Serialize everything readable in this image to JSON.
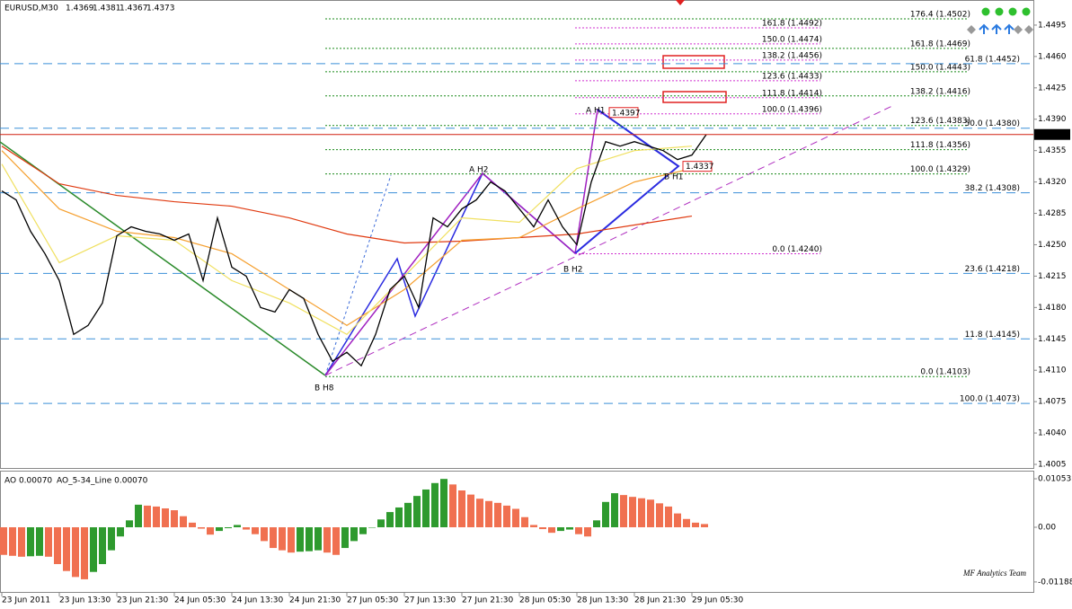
{
  "chart_data": [
    {
      "type": "line",
      "symbol": "EURUSD,M30",
      "ohlc": [
        1.4369,
        1.4381,
        1.4367,
        1.4373
      ],
      "color": "#000000",
      "values": [
        1.431,
        1.43,
        1.4265,
        1.424,
        1.421,
        1.415,
        1.416,
        1.4185,
        1.426,
        1.427,
        1.4265,
        1.4262,
        1.4255,
        1.4262,
        1.421,
        1.428,
        1.4225,
        1.4215,
        1.418,
        1.4175,
        1.42,
        1.419,
        1.415,
        1.412,
        1.413,
        1.4115,
        1.415,
        1.42,
        1.4215,
        1.418,
        1.428,
        1.427,
        1.429,
        1.43,
        1.432,
        1.431,
        1.429,
        1.427,
        1.43,
        1.427,
        1.425,
        1.432,
        1.4365,
        1.436,
        1.4365,
        1.436,
        1.4355,
        1.4345,
        1.435,
        1.4373
      ],
      "ylim": [
        1.4,
        1.4523
      ],
      "yticks": [
        1.4005,
        {
          "value": 1.404,
          "label": "1.4040"
        },
        1.4075,
        {
          "value": 1.411,
          "label": "1.4110"
        },
        1.4145,
        {
          "value": 1.418,
          "label": "1.4180"
        },
        1.4215,
        {
          "value": 1.425,
          "label": "1.4250"
        },
        1.4285,
        {
          "value": 1.432,
          "label": "1.4320"
        },
        1.4355,
        {
          "value": 1.439,
          "label": "1.4390"
        },
        1.4425,
        {
          "value": 1.446,
          "label": "1.4460"
        },
        1.4495
      ],
      "last_price": 1.4373,
      "last_price_color": "#d02010",
      "moving_averages": [
        {
          "color": "#e03a10",
          "values": [
            1.436,
            1.4318,
            1.4305,
            1.4298,
            1.4293,
            1.428,
            1.4262,
            1.4252,
            1.4254,
            1.4258,
            1.4262,
            1.4272,
            1.4282
          ]
        },
        {
          "color": "#f5a030",
          "values": [
            1.4355,
            1.429,
            1.4265,
            1.4258,
            1.424,
            1.42,
            1.416,
            1.42,
            1.4255,
            1.4258,
            1.429,
            1.432,
            1.4335
          ]
        },
        {
          "color": "#f0e060",
          "values": [
            1.434,
            1.423,
            1.426,
            1.4255,
            1.421,
            1.4185,
            1.415,
            1.4215,
            1.428,
            1.4275,
            1.4335,
            1.4355,
            1.436
          ]
        }
      ],
      "fib_groups": [
        {
          "color": "#1a8a1a",
          "levels": [
            {
              "value": 1.4502,
              "label": "176.4 (1.4502)"
            },
            {
              "value": 1.4469,
              "label": "161.8 (1.4469)"
            },
            {
              "value": 1.4443,
              "label": "150.0 (1.4443)"
            },
            {
              "value": 1.4416,
              "label": "138.2 (1.4416)"
            },
            {
              "value": 1.4383,
              "label": "123.6 (1.4383)"
            },
            {
              "value": 1.4356,
              "label": "111.8 (1.4356)"
            },
            {
              "value": 1.4329,
              "label": "100.0 (1.4329)"
            },
            {
              "value": 1.4103,
              "label": "0.0 (1.4103)"
            }
          ]
        },
        {
          "color": "#d030d0",
          "levels": [
            {
              "value": 1.4492,
              "label": "161.8 (1.4492)"
            },
            {
              "value": 1.4474,
              "label": "150.0 (1.4474)"
            },
            {
              "value": 1.4456,
              "label": "138.2 (1.4456)"
            },
            {
              "value": 1.4433,
              "label": "123.6 (1.4433)"
            },
            {
              "value": 1.4414,
              "label": "111.8 (1.4414)"
            },
            {
              "value": 1.4396,
              "label": "100.0 (1.4396)"
            },
            {
              "value": 1.424,
              "label": "0.0 (1.4240)"
            }
          ]
        },
        {
          "color": "#3a8fd8",
          "levels": [
            {
              "value": 1.4452,
              "label": "61.8 (1.4452)"
            },
            {
              "value": 1.438,
              "label": "50.0 (1.4380)"
            },
            {
              "value": 1.4308,
              "label": "38.2 (1.4308)"
            },
            {
              "value": 1.4218,
              "label": "23.6 (1.4218)"
            },
            {
              "value": 1.4145,
              "label": "11.8 (1.4145)"
            },
            {
              "value": 1.4073,
              "label": "100.0 (1.4073)"
            }
          ]
        }
      ],
      "patterns": [
        {
          "label": "A H1",
          "color": "#2a2ae0"
        },
        {
          "label": "B H1",
          "color": "#2a2ae0"
        },
        {
          "label": "A H2",
          "color": "#a020c0"
        },
        {
          "label": "B H2",
          "color": "#a020c0"
        },
        {
          "label": "B H8",
          "color": "#1a8a1a"
        }
      ],
      "price_tags": [
        1.4397,
        1.4337
      ],
      "watermark": "MF Analytics Team",
      "x_labels": [
        "23 Jun 2011",
        "23 Jun 13:30",
        "23 Jun 21:30",
        "24 Jun 05:30",
        "24 Jun 13:30",
        "24 Jun 21:30",
        "27 Jun 05:30",
        "27 Jun 13:30",
        "27 Jun 21:30",
        "28 Jun 05:30",
        "28 Jun 13:30",
        "28 Jun 21:30",
        "29 Jun 05:30"
      ]
    },
    {
      "type": "bar",
      "title": "AO 0.00070",
      "subtitle": "AO_5-34_Line 0.00070",
      "up_color": "#2e9a2e",
      "down_color": "#f07050",
      "values": [
        -0.006,
        -0.0062,
        -0.0064,
        -0.0063,
        -0.0062,
        -0.0064,
        -0.008,
        -0.0095,
        -0.0108,
        -0.0113,
        -0.0097,
        -0.008,
        -0.005,
        -0.002,
        0.0015,
        0.0049,
        0.0047,
        0.0045,
        0.0041,
        0.0037,
        0.0024,
        0.001,
        -0.0003,
        -0.0016,
        -0.0008,
        -0.0002,
        0.0005,
        -0.0005,
        -0.0015,
        -0.003,
        -0.0045,
        -0.005,
        -0.0055,
        -0.0053,
        -0.0052,
        -0.005,
        -0.0055,
        -0.006,
        -0.0045,
        -0.003,
        -0.0015,
        0.0,
        0.0017,
        0.0033,
        0.0043,
        0.0053,
        0.0068,
        0.0082,
        0.0096,
        0.0105,
        0.0093,
        0.008,
        0.0071,
        0.0062,
        0.0057,
        0.0053,
        0.0047,
        0.004,
        0.0022,
        0.0005,
        -0.0004,
        -0.0012,
        -0.0008,
        -0.0005,
        -0.0015,
        -0.002,
        0.0015,
        0.0055,
        0.0074,
        0.007,
        0.0066,
        0.0063,
        0.006,
        0.0052,
        0.0045,
        0.003,
        0.0018,
        0.001,
        0.0007
      ],
      "ylim": [
        -0.01424,
        0.01229
      ],
      "yticks": [
        0.01053,
        {
          "value": 0,
          "label": "0.00"
        },
        -0.01188
      ]
    }
  ]
}
